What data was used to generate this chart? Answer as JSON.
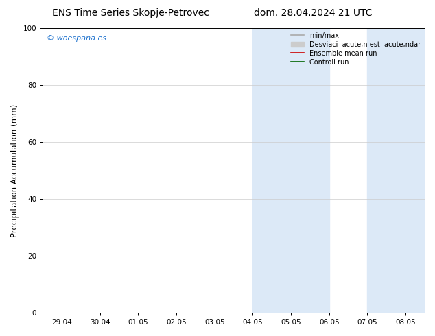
{
  "title_left": "ENS Time Series Skopje-Petrovec",
  "title_right": "dom. 28.04.2024 21 UTC",
  "ylabel": "Precipitation Accumulation (mm)",
  "ylim": [
    0,
    100
  ],
  "xlim": [
    -0.5,
    9.5
  ],
  "background_color": "#ffffff",
  "plot_bg_color": "#ffffff",
  "watermark": "© woespana.es",
  "watermark_color": "#1a6fcc",
  "x_tick_labels": [
    "29.04",
    "30.04",
    "01.05",
    "02.05",
    "03.05",
    "04.05",
    "05.05",
    "06.05",
    "07.05",
    "08.05"
  ],
  "x_tick_positions": [
    0,
    1,
    2,
    3,
    4,
    5,
    6,
    7,
    8,
    9
  ],
  "shade_band1_start": 5.0,
  "shade_band1_end": 7.0,
  "shade_band2_start": 8.0,
  "shade_band2_end": 9.5,
  "shade_color": "#dce9f7",
  "legend_line_color": "#aaaaaa",
  "legend_patch_color": "#cccccc",
  "legend_mean_color": "#cc0000",
  "legend_ctrl_color": "#006600",
  "title_fontsize": 10,
  "tick_fontsize": 7.5,
  "ylabel_fontsize": 8.5,
  "legend_fontsize": 7,
  "watermark_fontsize": 8
}
